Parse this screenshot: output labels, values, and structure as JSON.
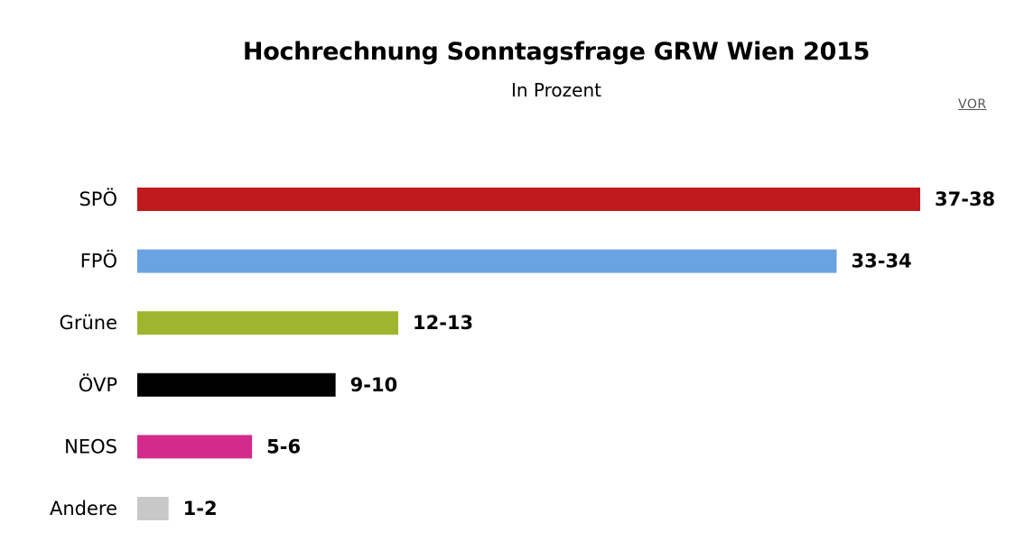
{
  "chart_data": {
    "type": "bar",
    "orientation": "horizontal",
    "title": "Hochrechnung Sonntagsfrage GRW Wien 2015",
    "subtitle": "In Prozent",
    "source": "VOR",
    "categories": [
      "SPÖ",
      "FPÖ",
      "Grüne",
      "ÖVP",
      "NEOS",
      "Andere"
    ],
    "values": [
      37.5,
      33.5,
      12.5,
      9.5,
      5.5,
      1.5
    ],
    "value_labels": [
      "37-38",
      "33-34",
      "12-13",
      "9-10",
      "5-6",
      "1-2"
    ],
    "colors": [
      "#c0191e",
      "#6aa3e2",
      "#9fb52e",
      "#000000",
      "#d42a8c",
      "#c8c8c8"
    ],
    "xlim": [
      0,
      37.5
    ],
    "grid": false,
    "legend": "none"
  }
}
